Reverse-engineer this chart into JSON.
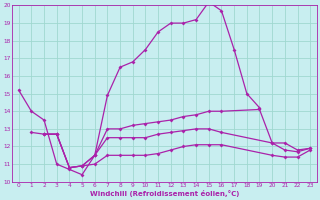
{
  "xlabel": "Windchill (Refroidissement éolien,°C)",
  "bg_color": "#c8eef0",
  "grid_color": "#a0d8d0",
  "line_color": "#aa22aa",
  "xlim": [
    -0.5,
    23.5
  ],
  "ylim": [
    10,
    20
  ],
  "yticks": [
    10,
    11,
    12,
    13,
    14,
    15,
    16,
    17,
    18,
    19,
    20
  ],
  "xticks": [
    0,
    1,
    2,
    3,
    4,
    5,
    6,
    7,
    8,
    9,
    10,
    11,
    12,
    13,
    14,
    15,
    16,
    17,
    18,
    19,
    20,
    21,
    22,
    23
  ],
  "series": [
    {
      "x": [
        0,
        1,
        2,
        3,
        4,
        5,
        6,
        7,
        8,
        9,
        10,
        11,
        12,
        13,
        14,
        15,
        16,
        17,
        18,
        19
      ],
      "y": [
        15.2,
        14.0,
        13.5,
        11.0,
        10.7,
        10.4,
        11.5,
        14.9,
        16.5,
        16.8,
        17.5,
        18.5,
        19.0,
        19.0,
        19.2,
        20.2,
        19.7,
        17.5,
        15.0,
        14.2
      ]
    },
    {
      "x": [
        1,
        2,
        3,
        4,
        5,
        6,
        7,
        8,
        9,
        10,
        11,
        12,
        13,
        14,
        15,
        16,
        19,
        20,
        21,
        22,
        23
      ],
      "y": [
        12.8,
        12.7,
        12.7,
        10.8,
        10.9,
        11.5,
        13.0,
        13.0,
        13.2,
        13.3,
        13.4,
        13.5,
        13.7,
        13.8,
        14.0,
        14.0,
        14.1,
        12.2,
        12.2,
        11.8,
        11.9
      ]
    },
    {
      "x": [
        2,
        3,
        4,
        5,
        6,
        7,
        8,
        9,
        10,
        11,
        12,
        13,
        14,
        15,
        16,
        20,
        21,
        22,
        23
      ],
      "y": [
        12.7,
        12.7,
        10.8,
        10.9,
        11.5,
        12.5,
        12.5,
        12.5,
        12.5,
        12.7,
        12.8,
        12.9,
        13.0,
        13.0,
        12.8,
        12.2,
        11.8,
        11.7,
        11.9
      ]
    },
    {
      "x": [
        2,
        3,
        4,
        5,
        6,
        7,
        8,
        9,
        10,
        11,
        12,
        13,
        14,
        15,
        16,
        20,
        21,
        22,
        23
      ],
      "y": [
        12.7,
        12.7,
        10.8,
        10.9,
        11.0,
        11.5,
        11.5,
        11.5,
        11.5,
        11.6,
        11.8,
        12.0,
        12.1,
        12.1,
        12.1,
        11.5,
        11.4,
        11.4,
        11.8
      ]
    }
  ]
}
